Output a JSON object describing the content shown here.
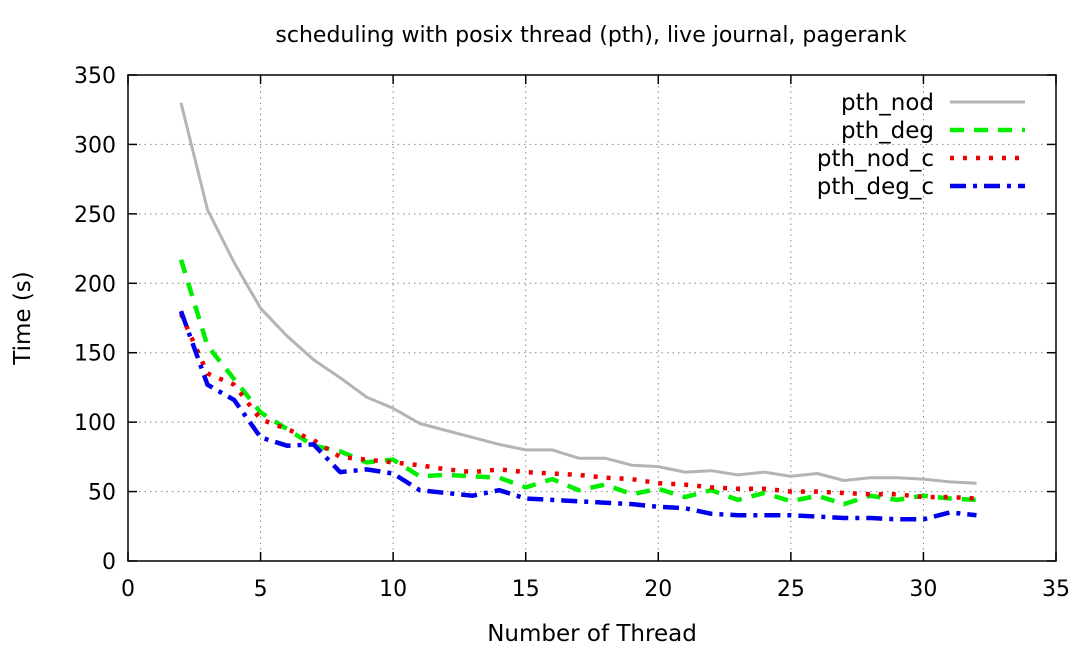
{
  "chart_data": {
    "type": "line",
    "title": "scheduling with posix thread (pth), live journal, pagerank",
    "xlabel": "Number of Thread",
    "ylabel": "Time (s)",
    "xlim": [
      0,
      35
    ],
    "ylim": [
      0,
      350
    ],
    "xticks": [
      0,
      5,
      10,
      15,
      20,
      25,
      30,
      35
    ],
    "yticks": [
      0,
      50,
      100,
      150,
      200,
      250,
      300,
      350
    ],
    "grid": true,
    "legend_position": "top-right",
    "x": [
      2,
      3,
      4,
      5,
      6,
      7,
      8,
      9,
      10,
      11,
      12,
      13,
      14,
      15,
      16,
      17,
      18,
      19,
      20,
      21,
      22,
      23,
      24,
      25,
      26,
      27,
      28,
      29,
      30,
      31,
      32
    ],
    "series": [
      {
        "name": "pth_nod",
        "color": "#b4b4b4",
        "style": "solid",
        "values": [
          330,
          253,
          215,
          182,
          162,
          145,
          132,
          118,
          110,
          99,
          94,
          89,
          84,
          80,
          80,
          74,
          74,
          69,
          68,
          64,
          65,
          62,
          64,
          61,
          63,
          58,
          60,
          60,
          59,
          57,
          56
        ]
      },
      {
        "name": "pth_deg",
        "color": "#00ee00",
        "style": "dashed",
        "values": [
          217,
          155,
          131,
          107,
          95,
          83,
          79,
          71,
          73,
          61,
          62,
          61,
          60,
          53,
          59,
          51,
          55,
          48,
          52,
          46,
          51,
          44,
          49,
          43,
          47,
          41,
          47,
          44,
          47,
          45,
          44
        ]
      },
      {
        "name": "pth_nod_c",
        "color": "#ee0000",
        "style": "dotted",
        "values": [
          178,
          135,
          127,
          102,
          95,
          87,
          75,
          73,
          71,
          69,
          66,
          64,
          66,
          64,
          63,
          62,
          60,
          59,
          56,
          55,
          53,
          52,
          52,
          50,
          50,
          49,
          48,
          48,
          46,
          46,
          45
        ]
      },
      {
        "name": "pth_deg_c",
        "color": "#0000ee",
        "style": "dashdot",
        "values": [
          180,
          127,
          116,
          89,
          83,
          84,
          64,
          66,
          63,
          51,
          49,
          47,
          51,
          45,
          44,
          43,
          42,
          41,
          39,
          38,
          34,
          33,
          33,
          33,
          32,
          31,
          31,
          30,
          30,
          35,
          33
        ]
      }
    ]
  }
}
